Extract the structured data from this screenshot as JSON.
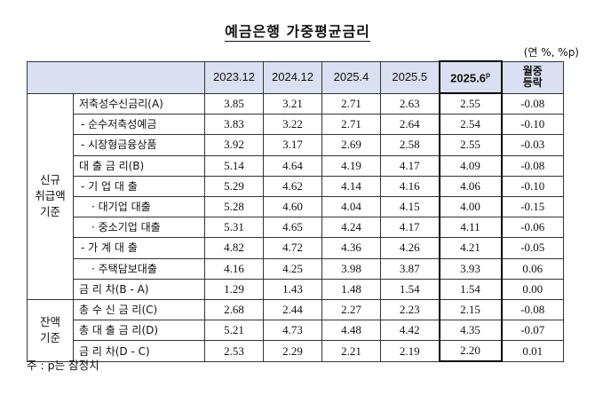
{
  "title": "예금은행 가중평균금리",
  "unit": "(연 %, %p)",
  "header": {
    "cols": [
      "2023.12",
      "2024.12",
      "2025.4",
      "2025.5"
    ],
    "current": "2025.6",
    "current_sup": "p",
    "change_line1": "월중",
    "change_line2": "등락"
  },
  "groups": {
    "new": [
      "신규",
      "취급액",
      "기준"
    ],
    "outstanding": [
      "잔액",
      "기준"
    ]
  },
  "rows": [
    {
      "label": "저축성수신금리(A)",
      "values": [
        "3.85",
        "3.21",
        "2.71",
        "2.63",
        "2.55",
        "-0.08"
      ]
    },
    {
      "label": "- 순수저축성예금",
      "values": [
        "3.83",
        "3.22",
        "2.71",
        "2.64",
        "2.54",
        "-0.10"
      ]
    },
    {
      "label": "- 시장형금융상품",
      "values": [
        "3.92",
        "3.17",
        "2.69",
        "2.58",
        "2.55",
        "-0.03"
      ]
    },
    {
      "label": "대 출 금 리(B)",
      "values": [
        "5.14",
        "4.64",
        "4.19",
        "4.17",
        "4.09",
        "-0.08"
      ]
    },
    {
      "label": "- 기 업 대 출",
      "values": [
        "5.29",
        "4.62",
        "4.14",
        "4.16",
        "4.06",
        "-0.10"
      ]
    },
    {
      "label": "· 대기업 대출",
      "values": [
        "5.28",
        "4.60",
        "4.04",
        "4.15",
        "4.00",
        "-0.15"
      ]
    },
    {
      "label": "· 중소기업 대출",
      "values": [
        "5.31",
        "4.65",
        "4.24",
        "4.17",
        "4.11",
        "-0.06"
      ]
    },
    {
      "label": "- 가 계 대 출",
      "values": [
        "4.82",
        "4.72",
        "4.36",
        "4.26",
        "4.21",
        "-0.05"
      ]
    },
    {
      "label": "· 주택담보대출",
      "values": [
        "4.16",
        "4.25",
        "3.98",
        "3.87",
        "3.93",
        "0.06"
      ]
    },
    {
      "label": "금 리 차(B - A)",
      "values": [
        "1.29",
        "1.43",
        "1.48",
        "1.54",
        "1.54",
        "0.00"
      ]
    },
    {
      "label": "총 수 신 금 리(C)",
      "values": [
        "2.68",
        "2.44",
        "2.27",
        "2.23",
        "2.15",
        "-0.08"
      ]
    },
    {
      "label": "총 대 출 금 리(D)",
      "values": [
        "5.21",
        "4.73",
        "4.48",
        "4.42",
        "4.35",
        "-0.07"
      ]
    },
    {
      "label": "금 리 차(D - C)",
      "values": [
        "2.53",
        "2.29",
        "2.21",
        "2.19",
        "2.20",
        "0.01"
      ]
    }
  ],
  "note": "주 : p는 잠정치"
}
